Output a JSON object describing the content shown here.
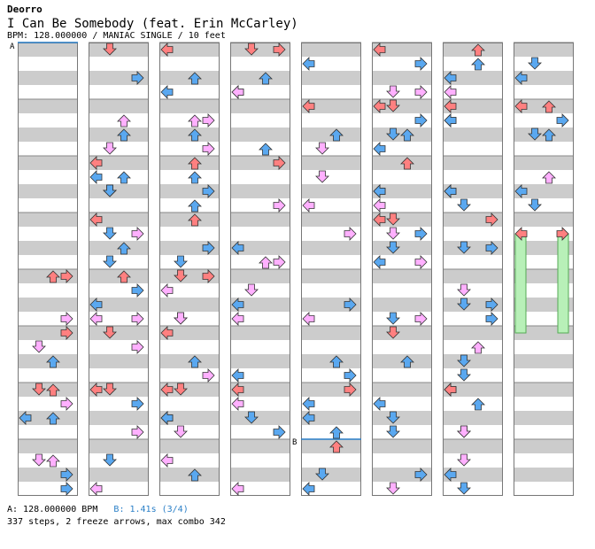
{
  "header": {
    "artist": "Deorro",
    "title": "I Can Be Somebody (feat. Erin McCarley)",
    "info": "BPM: 128.000000 / MANIAC SINGLE / 10 feet"
  },
  "markers": {
    "a": "A",
    "b": "B"
  },
  "footer": {
    "bpm_a": "A: 128.000000 BPM",
    "bpm_b": "B: 1.41s (3/4)",
    "stats": "337 steps, 2 freeze arrows, max combo 342"
  },
  "colors": {
    "red": "#ff8080",
    "blue": "#5aa8f0",
    "pink": "#ffb0ff",
    "freeze": "#b8f0b8",
    "stripe": "#cccccc",
    "bpm_line": "#2a7fc7"
  },
  "icons": {
    "arrow": "arrow-icon"
  }
}
